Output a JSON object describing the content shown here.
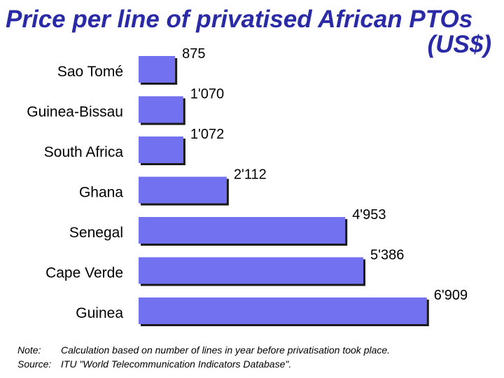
{
  "title": {
    "line1": "Price per line of privatised African PTOs",
    "line2": "(US$)"
  },
  "chart_data": {
    "type": "bar",
    "orientation": "horizontal",
    "categories": [
      "Sao Tomé",
      "Guinea-Bissau",
      "South Africa",
      "Ghana",
      "Senegal",
      "Cape Verde",
      "Guinea"
    ],
    "values": [
      875,
      1070,
      1072,
      2112,
      4953,
      5386,
      6909
    ],
    "value_labels": [
      "875",
      "1'070",
      "1'072",
      "2'112",
      "4'953",
      "5'386",
      "6'909"
    ],
    "bar_color": "#7272f0",
    "legend": "none",
    "grid": false
  },
  "footnote": {
    "note_label": "Note:",
    "note_text": "Calculation based on number of lines in year before privatisation took place.",
    "source_label": "Source:",
    "source_text": "ITU \"World Telecommunication Indicators Database\"."
  },
  "colors": {
    "title": "#2a2aa6",
    "bar": "#7272f0",
    "shadow": "#1a1a1a"
  }
}
